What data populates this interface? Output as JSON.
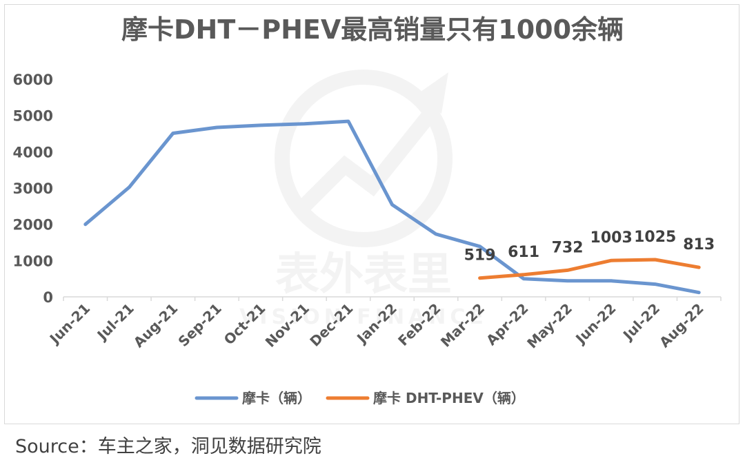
{
  "source": "Source：车主之家，洞见数据研究院",
  "watermark": {
    "text": "表外表里",
    "subtext": "VISION FINANCE"
  },
  "chart_data": {
    "type": "line",
    "title": "摩卡DHT－PHEV最高销量只有1000余辆",
    "xlabel": "",
    "ylabel": "",
    "ylim": [
      0,
      6000
    ],
    "yticks": [
      0,
      1000,
      2000,
      3000,
      4000,
      5000,
      6000
    ],
    "grid": false,
    "legend_position": "bottom",
    "categories": [
      "Jun-21",
      "Jul-21",
      "Aug-21",
      "Sep-21",
      "Oct-21",
      "Nov-21",
      "Dec-21",
      "Jan-22",
      "Feb-22",
      "Mar-22",
      "Apr-22",
      "May-22",
      "Jun-22",
      "Jul-22",
      "Aug-22"
    ],
    "series": [
      {
        "name": "摩卡（辆）",
        "color": "#6A95CF",
        "values": [
          2000,
          3020,
          4510,
          4670,
          4730,
          4770,
          4840,
          2540,
          1730,
          1390,
          500,
          440,
          440,
          350,
          120
        ],
        "show_labels": false
      },
      {
        "name": "摩卡 DHT-PHEV（辆）",
        "color": "#ED7D31",
        "values": [
          null,
          null,
          null,
          null,
          null,
          null,
          null,
          null,
          null,
          519,
          611,
          732,
          1003,
          1025,
          813
        ],
        "show_labels": true
      }
    ]
  }
}
